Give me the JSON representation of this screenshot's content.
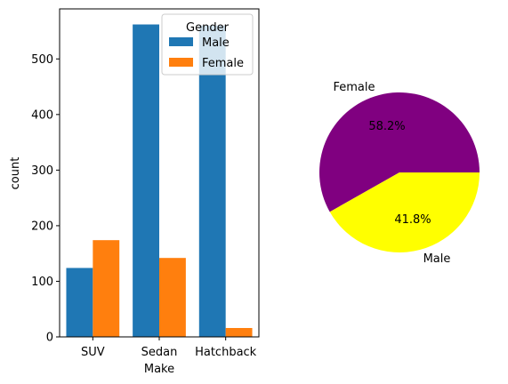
{
  "chart_data": [
    {
      "type": "bar",
      "xlabel": "Make",
      "ylabel": "count",
      "categories": [
        "SUV",
        "Sedan",
        "Hatchback"
      ],
      "ylim": [
        0,
        590
      ],
      "yticks": [
        0,
        100,
        200,
        300,
        400,
        500
      ],
      "legend": {
        "title": "Gender",
        "placement": "top-right"
      },
      "series": [
        {
          "name": "Male",
          "color": "#1f77b4",
          "values": [
            124,
            562,
            560
          ]
        },
        {
          "name": "Female",
          "color": "#ff7f0e",
          "values": [
            174,
            142,
            16
          ]
        }
      ]
    },
    {
      "type": "pie",
      "slices": [
        {
          "label": "Female",
          "value": 58.2,
          "pct_label": "58.2%",
          "color": "#800080"
        },
        {
          "label": "Male",
          "value": 41.8,
          "pct_label": "41.8%",
          "color": "#ffff00"
        }
      ]
    }
  ]
}
